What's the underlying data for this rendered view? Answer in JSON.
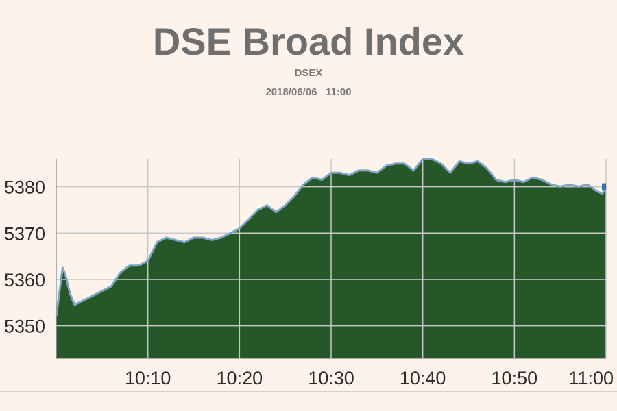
{
  "title": "DSE Broad Index",
  "subtitle": "DSEX",
  "datetime": "2018/06/06   11:00",
  "colors": {
    "background": "#fdf3ea",
    "area_fill": "#255728",
    "line": "#7ea2c8",
    "grid": "#c8c8c8",
    "end_marker": "#2d6fb0"
  },
  "chart_data": {
    "type": "area",
    "title": "DSE Broad Index",
    "xlabel": "",
    "ylabel": "",
    "xlim": [
      0,
      60
    ],
    "ylim": [
      5343,
      5386
    ],
    "x_ticks": [
      10,
      20,
      30,
      40,
      50,
      60
    ],
    "x_tick_labels": [
      "10:10",
      "10:20",
      "10:30",
      "10:40",
      "10:50",
      "11:00"
    ],
    "y_ticks": [
      5350,
      5360,
      5370,
      5380
    ],
    "y_tick_labels": [
      "5350",
      "5360",
      "5370",
      "5380"
    ],
    "grid": true,
    "series": [
      {
        "x": [
          0,
          0.7,
          1.0,
          1.5,
          2.0,
          3.0,
          4.0,
          5.0,
          6.0,
          7.0,
          8.0,
          9.0,
          10.0,
          11.0,
          12.0,
          13.0,
          14.0,
          15.0,
          16.0,
          17.0,
          18.0,
          19.0,
          20.0,
          21.0,
          22.0,
          23.0,
          24.0,
          25.0,
          26.0,
          27.0,
          28.0,
          29.0,
          30.0,
          31.0,
          32.0,
          33.0,
          34.0,
          35.0,
          36.0,
          37.0,
          38.0,
          39.0,
          40.0,
          41.0,
          42.0,
          43.0,
          44.0,
          45.0,
          46.0,
          47.0,
          48.0,
          49.0,
          50.0,
          51.0,
          52.0,
          53.0,
          54.0,
          55.0,
          56.0,
          57.0,
          58.0,
          59.0,
          59.6,
          60.0
        ],
        "y": [
          5352,
          5362.5,
          5361,
          5357,
          5354.5,
          5355.5,
          5356.5,
          5357.5,
          5358.5,
          5361.5,
          5363,
          5363,
          5364,
          5368,
          5369,
          5368.5,
          5368,
          5369,
          5369,
          5368.5,
          5369,
          5370,
          5371,
          5373,
          5375,
          5376,
          5374.5,
          5376,
          5378,
          5380.5,
          5382,
          5381.5,
          5383,
          5383,
          5382.5,
          5383.5,
          5383.5,
          5383,
          5384.5,
          5385,
          5385,
          5383.5,
          5386,
          5386,
          5385,
          5383,
          5385.5,
          5385,
          5385.5,
          5384,
          5381.5,
          5381,
          5381.5,
          5381,
          5382,
          5381.5,
          5380.5,
          5380,
          5380.5,
          5380,
          5380.5,
          5379,
          5378.5,
          5380
        ]
      }
    ]
  }
}
